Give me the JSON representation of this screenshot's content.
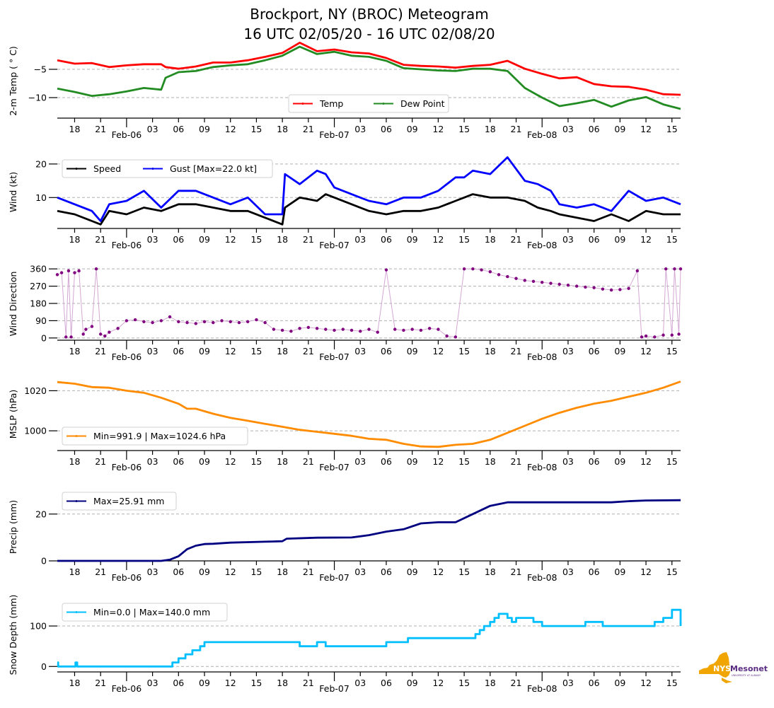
{
  "title_line1": "Brockport, NY (BROC) Meteogram",
  "title_line2": "16 UTC 02/05/20 - 16 UTC 02/08/20",
  "logo": {
    "name": "NYS Mesonet logo",
    "text_nys": "NYS",
    "text_mesonet": "Mesonet",
    "subtext": "UNIVERSITY AT ALBANY",
    "color_state": "#f0a500",
    "color_text": "#5b2c83"
  },
  "chart_data": [
    {
      "type": "line",
      "panel": "temperature",
      "ylabel": "2-m Temp ($^\\circ$C)",
      "ylabel_display": "2-m Temp ( ° C)",
      "yticks": [
        -5,
        -10
      ],
      "ylim": [
        -12.5,
        -0.5
      ],
      "grid": true,
      "legend_location": "lower-center",
      "x_hours_from_start": [
        0,
        2,
        4,
        6,
        8,
        10,
        12,
        12.5,
        14,
        16,
        18,
        20,
        22,
        24,
        26,
        28,
        30,
        32,
        34,
        36,
        38,
        40,
        42,
        44,
        46,
        48,
        50,
        52,
        54,
        56,
        58,
        60,
        62,
        64,
        66,
        68,
        70,
        72
      ],
      "series": [
        {
          "name": "Temp",
          "color": "#ff0000",
          "values": [
            -3.4,
            -4.0,
            -3.9,
            -4.6,
            -4.3,
            -4.1,
            -4.1,
            -4.6,
            -4.9,
            -4.5,
            -3.8,
            -3.8,
            -3.4,
            -2.8,
            -2.1,
            -0.3,
            -1.8,
            -1.5,
            -2.0,
            -2.2,
            -3.0,
            -4.2,
            -4.4,
            -4.5,
            -4.7,
            -4.4,
            -4.2,
            -3.5,
            -4.9,
            -5.8,
            -6.6,
            -6.4,
            -7.6,
            -8.0,
            -8.1,
            -8.6,
            -9.4,
            -9.5
          ]
        },
        {
          "name": "Dew Point",
          "color": "#228b22",
          "values": [
            -8.4,
            -9.0,
            -9.7,
            -9.4,
            -8.9,
            -8.3,
            -8.6,
            -6.5,
            -5.5,
            -5.3,
            -4.6,
            -4.3,
            -4.1,
            -3.4,
            -2.6,
            -1.0,
            -2.3,
            -1.9,
            -2.6,
            -2.8,
            -3.5,
            -4.8,
            -5.0,
            -5.2,
            -5.3,
            -4.9,
            -4.9,
            -5.3,
            -8.3,
            -10.0,
            -11.5,
            -11.0,
            -10.4,
            -11.6,
            -10.5,
            -9.9,
            -11.2,
            -12.0
          ]
        }
      ]
    },
    {
      "type": "line",
      "panel": "wind",
      "ylabel": "Wind (kt)",
      "yticks": [
        10,
        20
      ],
      "ylim": [
        1,
        22.5
      ],
      "grid": true,
      "legend_location": "upper-left",
      "x_hours_from_start": [
        0,
        2,
        4,
        5,
        6,
        8,
        10,
        12,
        14,
        16,
        18,
        20,
        22,
        24,
        26,
        26.3,
        28,
        30,
        31,
        32,
        34,
        36,
        38,
        40,
        42,
        44,
        46,
        47,
        48,
        50,
        52,
        54,
        55.5,
        57,
        58,
        60,
        62,
        64,
        66,
        68,
        70,
        72
      ],
      "series": [
        {
          "name": "Speed",
          "color": "#000000",
          "values": [
            6,
            5,
            3,
            2,
            6,
            5,
            7,
            6,
            8,
            8,
            7,
            6,
            6,
            4,
            2,
            7,
            10,
            9,
            11,
            10,
            8,
            6,
            5,
            6,
            6,
            7,
            9,
            10,
            11,
            10,
            10,
            9,
            7,
            6,
            5,
            4,
            3,
            5,
            3,
            6,
            5,
            5
          ]
        },
        {
          "name": "Gust [Max=22.0 kt]",
          "color": "#0000ff",
          "values": [
            10,
            8,
            6,
            3,
            8,
            9,
            12,
            7,
            12,
            12,
            10,
            8,
            10,
            5,
            5,
            17,
            14,
            18,
            17,
            13,
            11,
            9,
            8,
            10,
            10,
            12,
            16,
            16,
            18,
            17,
            22,
            15,
            14,
            12,
            8,
            7,
            8,
            6,
            12,
            9,
            10,
            8
          ]
        }
      ]
    },
    {
      "type": "scatter",
      "panel": "wind_direction",
      "ylabel": "Wind Direction",
      "yticks": [
        0,
        90,
        180,
        270,
        360
      ],
      "ylim": [
        -8,
        368
      ],
      "grid": true,
      "color": "#800080",
      "connector_color": "#d4a8d4",
      "x_hours_from_start": [
        0,
        0.5,
        1,
        1.3,
        1.6,
        2,
        2.5,
        3,
        3.3,
        4,
        4.5,
        5,
        5.5,
        6,
        7,
        8,
        9,
        10,
        11,
        12,
        13,
        14,
        15,
        16,
        17,
        18,
        19,
        20,
        21,
        22,
        23,
        24,
        25,
        26,
        27,
        28,
        29,
        30,
        31,
        32,
        33,
        34,
        35,
        36,
        37,
        38,
        39,
        40,
        41,
        42,
        43,
        44,
        45,
        46,
        47,
        48,
        49,
        50,
        51,
        52,
        53,
        54,
        55,
        56,
        57,
        58,
        59,
        60,
        61,
        62,
        63,
        64,
        65,
        66,
        67,
        67.5,
        68,
        69,
        70,
        70.3,
        71,
        71.3,
        71.8,
        72
      ],
      "values": [
        330,
        340,
        5,
        350,
        5,
        340,
        350,
        20,
        45,
        60,
        360,
        20,
        10,
        30,
        50,
        90,
        95,
        85,
        80,
        90,
        110,
        85,
        80,
        75,
        85,
        80,
        90,
        85,
        80,
        85,
        95,
        80,
        45,
        40,
        35,
        50,
        55,
        50,
        45,
        40,
        45,
        40,
        35,
        45,
        30,
        355,
        45,
        40,
        45,
        40,
        50,
        45,
        10,
        5,
        360,
        360,
        355,
        345,
        330,
        320,
        310,
        300,
        295,
        290,
        285,
        280,
        275,
        270,
        265,
        262,
        255,
        250,
        252,
        258,
        350,
        5,
        10,
        5,
        15,
        360,
        15,
        360,
        20,
        360
      ]
    },
    {
      "type": "line",
      "panel": "mslp",
      "ylabel": "MSLP (hPa)",
      "yticks": [
        1000,
        1020
      ],
      "ylim": [
        990.5,
        1026.5
      ],
      "grid": true,
      "legend_location": "lower-left",
      "x_hours_from_start": [
        0,
        2,
        4,
        6,
        8,
        10,
        12,
        14,
        15,
        16,
        18,
        20,
        22,
        24,
        26,
        28,
        30,
        32,
        34,
        36,
        38,
        40,
        42,
        44,
        46,
        48,
        50,
        52,
        54,
        56,
        58,
        60,
        62,
        64,
        66,
        68,
        70,
        72
      ],
      "series": [
        {
          "name": "Min=991.9 | Max=1024.6 hPa",
          "color": "#ff8c00",
          "values": [
            1024.3,
            1023.5,
            1021.8,
            1021.5,
            1020.0,
            1019.0,
            1016.5,
            1013.5,
            1011.0,
            1011.0,
            1008.5,
            1006.5,
            1005.0,
            1003.5,
            1002.0,
            1000.5,
            999.5,
            998.5,
            997.5,
            996.0,
            995.5,
            993.5,
            992.2,
            992.0,
            993.0,
            993.5,
            995.5,
            999.0,
            1002.5,
            1006.0,
            1009.0,
            1011.5,
            1013.5,
            1015.0,
            1017.0,
            1019.0,
            1021.5,
            1024.6
          ]
        }
      ]
    },
    {
      "type": "line",
      "panel": "precip",
      "ylabel": "Precip (mm)",
      "yticks": [
        0,
        20
      ],
      "ylim": [
        0,
        29
      ],
      "grid": true,
      "legend_location": "upper-left",
      "x_hours_from_start": [
        0,
        12,
        13,
        14,
        15,
        16,
        17,
        18,
        20,
        24,
        26,
        26.5,
        30,
        34,
        36,
        38,
        40,
        42,
        44,
        46,
        48,
        50,
        52,
        60,
        64,
        66,
        68,
        72
      ],
      "series": [
        {
          "name": "Max=25.91 mm",
          "color": "#000080",
          "values": [
            0,
            0,
            0.5,
            2,
            5,
            6.5,
            7.2,
            7.3,
            7.8,
            8.2,
            8.4,
            9.5,
            9.9,
            10.0,
            11.0,
            12.5,
            13.5,
            16.0,
            16.5,
            16.5,
            20.0,
            23.5,
            25.0,
            25.0,
            25.0,
            25.5,
            25.8,
            25.91
          ]
        }
      ]
    },
    {
      "type": "line",
      "panel": "snow_depth",
      "ylabel": "Snow Depth (mm)",
      "yticks": [
        0,
        100
      ],
      "ylim": [
        -10,
        170
      ],
      "grid": true,
      "legend_location": "upper-left",
      "x_hours_from_start": [
        0,
        0.1,
        0.3,
        2,
        2.1,
        2.3,
        13,
        13.3,
        13.7,
        14,
        14.4,
        14.8,
        15.2,
        15.6,
        16,
        16.5,
        17,
        26,
        28,
        30,
        31,
        38,
        40,
        40.5,
        48,
        48.3,
        48.8,
        49.3,
        50,
        50.5,
        51,
        52,
        52.5,
        53,
        55,
        56,
        57,
        58,
        60,
        61,
        63,
        65,
        68,
        69,
        70,
        71,
        72
      ],
      "series": [
        {
          "name": "Min=0.0 | Max=140.0 mm",
          "color": "#00bfff",
          "values": [
            10,
            0,
            0,
            0,
            10,
            0,
            0,
            10,
            10,
            20,
            20,
            30,
            30,
            40,
            40,
            50,
            60,
            60,
            50,
            60,
            50,
            60,
            60,
            70,
            70,
            80,
            90,
            100,
            110,
            120,
            130,
            120,
            110,
            120,
            110,
            100,
            100,
            100,
            100,
            110,
            100,
            100,
            100,
            110,
            120,
            140,
            100
          ]
        }
      ]
    }
  ],
  "x_axis": {
    "hour_tick_labels": [
      "18",
      "21",
      "03",
      "06",
      "09",
      "12",
      "15",
      "18",
      "21",
      "03",
      "06",
      "09",
      "12",
      "15",
      "18",
      "21",
      "03",
      "06",
      "09",
      "12",
      "15"
    ],
    "hour_tick_offsets": [
      2,
      5,
      11,
      14,
      17,
      20,
      23,
      26,
      29,
      35,
      38,
      41,
      44,
      47,
      50,
      53,
      59,
      62,
      65,
      68,
      71
    ],
    "date_tick_labels": [
      "Feb-06",
      "Feb-07",
      "Feb-08"
    ],
    "date_tick_offsets": [
      8,
      32,
      56
    ],
    "range_hours": [
      0,
      72
    ]
  }
}
